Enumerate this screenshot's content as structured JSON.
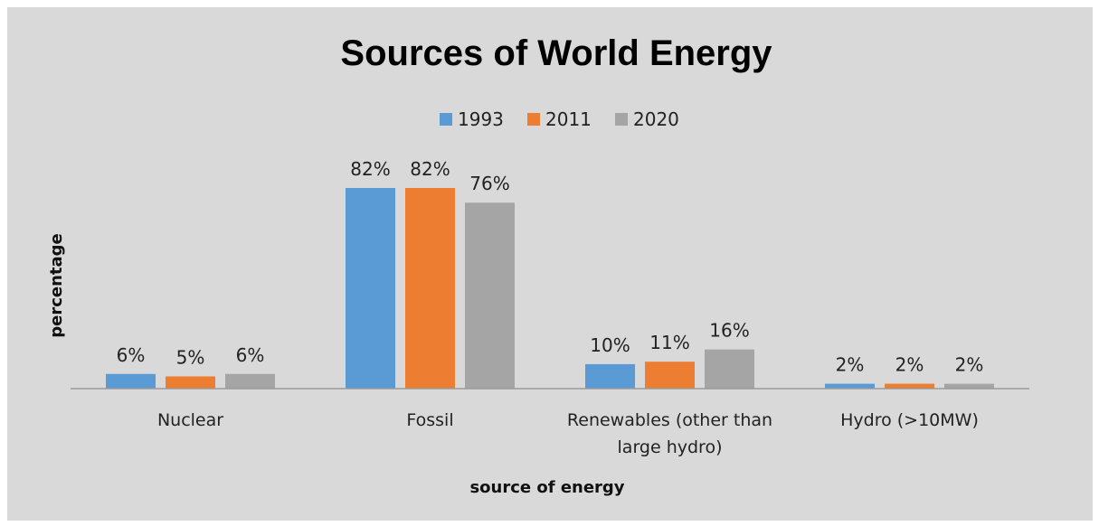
{
  "chart_data": {
    "type": "bar",
    "title": "Sources of World Energy",
    "xlabel": "source of energy",
    "ylabel": "percentage",
    "categories": [
      [
        "Nuclear"
      ],
      [
        "Fossil"
      ],
      [
        "Renewables (other than",
        "large hydro)"
      ],
      [
        "Hydro (>10MW)"
      ]
    ],
    "series": [
      {
        "name": "1993",
        "color": "#5b9bd5",
        "values": [
          6,
          82,
          10,
          2
        ]
      },
      {
        "name": "2011",
        "color": "#ed7d31",
        "values": [
          5,
          82,
          11,
          2
        ]
      },
      {
        "name": "2020",
        "color": "#a5a5a5",
        "values": [
          6,
          76,
          16,
          2
        ]
      }
    ],
    "data_label_suffix": "%",
    "ylim": [
      0,
      100
    ],
    "grid": false,
    "legend_position": "top"
  }
}
